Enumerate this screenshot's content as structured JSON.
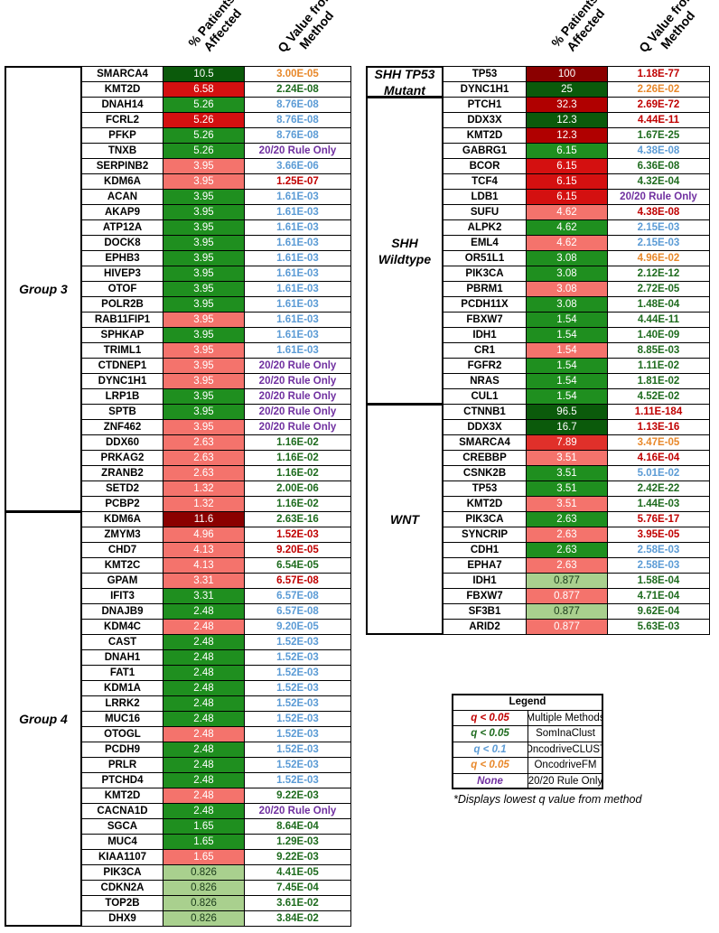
{
  "header": {
    "pct": "% Patients Affected",
    "q": "Q Value from Method"
  },
  "tables": [
    {
      "groups": [
        {
          "name": "Group 3",
          "rows": [
            [
              "SMARCA4",
              "10.5",
              "#0b5a0b",
              "3.00E-05",
              "#e8882a"
            ],
            [
              "KMT2D",
              "6.58",
              "#d41010",
              "2.24E-08",
              "#1e6b1e"
            ],
            [
              "DNAH14",
              "5.26",
              "#1f8f1f",
              "8.76E-08",
              "#5b9bd5"
            ],
            [
              "FCRL2",
              "5.26",
              "#d41010",
              "8.76E-08",
              "#5b9bd5"
            ],
            [
              "PFKP",
              "5.26",
              "#1f8f1f",
              "8.76E-08",
              "#5b9bd5"
            ],
            [
              "TNXB",
              "5.26",
              "#1f8f1f",
              "20/20 Rule Only",
              "#7030a0"
            ],
            [
              "SERPINB2",
              "3.95",
              "#f4736c",
              "3.66E-06",
              "#5b9bd5"
            ],
            [
              "KDM6A",
              "3.95",
              "#f4736c",
              "1.25E-07",
              "#c00000"
            ],
            [
              "ACAN",
              "3.95",
              "#1f8f1f",
              "1.61E-03",
              "#5b9bd5"
            ],
            [
              "AKAP9",
              "3.95",
              "#1f8f1f",
              "1.61E-03",
              "#5b9bd5"
            ],
            [
              "ATP12A",
              "3.95",
              "#1f8f1f",
              "1.61E-03",
              "#5b9bd5"
            ],
            [
              "DOCK8",
              "3.95",
              "#1f8f1f",
              "1.61E-03",
              "#5b9bd5"
            ],
            [
              "EPHB3",
              "3.95",
              "#1f8f1f",
              "1.61E-03",
              "#5b9bd5"
            ],
            [
              "HIVEP3",
              "3.95",
              "#1f8f1f",
              "1.61E-03",
              "#5b9bd5"
            ],
            [
              "OTOF",
              "3.95",
              "#1f8f1f",
              "1.61E-03",
              "#5b9bd5"
            ],
            [
              "POLR2B",
              "3.95",
              "#1f8f1f",
              "1.61E-03",
              "#5b9bd5"
            ],
            [
              "RAB11FIP1",
              "3.95",
              "#f4736c",
              "1.61E-03",
              "#5b9bd5"
            ],
            [
              "SPHKAP",
              "3.95",
              "#1f8f1f",
              "1.61E-03",
              "#5b9bd5"
            ],
            [
              "TRIML1",
              "3.95",
              "#f4736c",
              "1.61E-03",
              "#5b9bd5"
            ],
            [
              "CTDNEP1",
              "3.95",
              "#f4736c",
              "20/20 Rule Only",
              "#7030a0"
            ],
            [
              "DYNC1H1",
              "3.95",
              "#f4736c",
              "20/20 Rule Only",
              "#7030a0"
            ],
            [
              "LRP1B",
              "3.95",
              "#1f8f1f",
              "20/20 Rule Only",
              "#7030a0"
            ],
            [
              "SPTB",
              "3.95",
              "#1f8f1f",
              "20/20 Rule Only",
              "#7030a0"
            ],
            [
              "ZNF462",
              "3.95",
              "#f4736c",
              "20/20 Rule Only",
              "#7030a0"
            ],
            [
              "DDX60",
              "2.63",
              "#f4736c",
              "1.16E-02",
              "#1e6b1e"
            ],
            [
              "PRKAG2",
              "2.63",
              "#f4736c",
              "1.16E-02",
              "#1e6b1e"
            ],
            [
              "ZRANB2",
              "2.63",
              "#f4736c",
              "1.16E-02",
              "#1e6b1e"
            ],
            [
              "SETD2",
              "1.32",
              "#f4736c",
              "2.00E-06",
              "#1e6b1e"
            ],
            [
              "PCBP2",
              "1.32",
              "#f4736c",
              "1.16E-02",
              "#1e6b1e"
            ]
          ]
        },
        {
          "name": "Group 4",
          "rows": [
            [
              "KDM6A",
              "11.6",
              "#8b0000",
              "2.63E-16",
              "#1e6b1e"
            ],
            [
              "ZMYM3",
              "4.96",
              "#f4736c",
              "1.52E-03",
              "#c00000"
            ],
            [
              "CHD7",
              "4.13",
              "#f4736c",
              "9.20E-05",
              "#c00000"
            ],
            [
              "KMT2C",
              "4.13",
              "#f4736c",
              "6.54E-05",
              "#1e6b1e"
            ],
            [
              "GPAM",
              "3.31",
              "#f4736c",
              "6.57E-08",
              "#c00000"
            ],
            [
              "IFIT3",
              "3.31",
              "#1f8f1f",
              "6.57E-08",
              "#5b9bd5"
            ],
            [
              "DNAJB9",
              "2.48",
              "#1f8f1f",
              "6.57E-08",
              "#5b9bd5"
            ],
            [
              "KDM4C",
              "2.48",
              "#f4736c",
              "9.20E-05",
              "#5b9bd5"
            ],
            [
              "CAST",
              "2.48",
              "#1f8f1f",
              "1.52E-03",
              "#5b9bd5"
            ],
            [
              "DNAH1",
              "2.48",
              "#1f8f1f",
              "1.52E-03",
              "#5b9bd5"
            ],
            [
              "FAT1",
              "2.48",
              "#1f8f1f",
              "1.52E-03",
              "#5b9bd5"
            ],
            [
              "KDM1A",
              "2.48",
              "#1f8f1f",
              "1.52E-03",
              "#5b9bd5"
            ],
            [
              "LRRK2",
              "2.48",
              "#1f8f1f",
              "1.52E-03",
              "#5b9bd5"
            ],
            [
              "MUC16",
              "2.48",
              "#1f8f1f",
              "1.52E-03",
              "#5b9bd5"
            ],
            [
              "OTOGL",
              "2.48",
              "#f4736c",
              "1.52E-03",
              "#5b9bd5"
            ],
            [
              "PCDH9",
              "2.48",
              "#1f8f1f",
              "1.52E-03",
              "#5b9bd5"
            ],
            [
              "PRLR",
              "2.48",
              "#1f8f1f",
              "1.52E-03",
              "#5b9bd5"
            ],
            [
              "PTCHD4",
              "2.48",
              "#1f8f1f",
              "1.52E-03",
              "#5b9bd5"
            ],
            [
              "KMT2D",
              "2.48",
              "#f4736c",
              "9.22E-03",
              "#1e6b1e"
            ],
            [
              "CACNA1D",
              "2.48",
              "#1f8f1f",
              "20/20 Rule Only",
              "#7030a0"
            ],
            [
              "SGCA",
              "1.65",
              "#1f8f1f",
              "8.64E-04",
              "#1e6b1e"
            ],
            [
              "MUC4",
              "1.65",
              "#1f8f1f",
              "1.29E-03",
              "#1e6b1e"
            ],
            [
              "KIAA1107",
              "1.65",
              "#f4736c",
              "9.22E-03",
              "#1e6b1e"
            ],
            [
              "PIK3CA",
              "0.826",
              "#a9d08e",
              "4.41E-05",
              "#1e6b1e"
            ],
            [
              "CDKN2A",
              "0.826",
              "#a9d08e",
              "7.45E-04",
              "#1e6b1e"
            ],
            [
              "TOP2B",
              "0.826",
              "#a9d08e",
              "3.61E-02",
              "#1e6b1e"
            ],
            [
              "DHX9",
              "0.826",
              "#a9d08e",
              "3.84E-02",
              "#1e6b1e"
            ]
          ]
        }
      ]
    },
    {
      "groups": [
        {
          "name": "SHH TP53 Mutant",
          "rows": [
            [
              "TP53",
              "100",
              "#8b0000",
              "1.18E-77",
              "#c00000"
            ],
            [
              "DYNC1H1",
              "25",
              "#0b5a0b",
              "2.26E-02",
              "#e8882a"
            ]
          ]
        },
        {
          "name": "SHH Wildtype",
          "rows": [
            [
              "PTCH1",
              "32.3",
              "#b00000",
              "2.69E-72",
              "#c00000"
            ],
            [
              "DDX3X",
              "12.3",
              "#0b5a0b",
              "4.44E-11",
              "#c00000"
            ],
            [
              "KMT2D",
              "12.3",
              "#b00000",
              "1.67E-25",
              "#1e6b1e"
            ],
            [
              "GABRG1",
              "6.15",
              "#1f8f1f",
              "4.38E-08",
              "#5b9bd5"
            ],
            [
              "BCOR",
              "6.15",
              "#d41010",
              "6.36E-08",
              "#1e6b1e"
            ],
            [
              "TCF4",
              "6.15",
              "#d41010",
              "4.32E-04",
              "#1e6b1e"
            ],
            [
              "LDB1",
              "6.15",
              "#d41010",
              "20/20 Rule Only",
              "#7030a0"
            ],
            [
              "SUFU",
              "4.62",
              "#f4736c",
              "4.38E-08",
              "#c00000"
            ],
            [
              "ALPK2",
              "4.62",
              "#1f8f1f",
              "2.15E-03",
              "#5b9bd5"
            ],
            [
              "EML4",
              "4.62",
              "#f4736c",
              "2.15E-03",
              "#5b9bd5"
            ],
            [
              "OR51L1",
              "3.08",
              "#1f8f1f",
              "4.96E-02",
              "#e8882a"
            ],
            [
              "PIK3CA",
              "3.08",
              "#1f8f1f",
              "2.12E-12",
              "#1e6b1e"
            ],
            [
              "PBRM1",
              "3.08",
              "#f4736c",
              "2.72E-05",
              "#1e6b1e"
            ],
            [
              "PCDH11X",
              "3.08",
              "#1f8f1f",
              "1.48E-04",
              "#1e6b1e"
            ],
            [
              "FBXW7",
              "1.54",
              "#1f8f1f",
              "4.44E-11",
              "#1e6b1e"
            ],
            [
              "IDH1",
              "1.54",
              "#1f8f1f",
              "1.40E-09",
              "#1e6b1e"
            ],
            [
              "CR1",
              "1.54",
              "#f4736c",
              "8.85E-03",
              "#1e6b1e"
            ],
            [
              "FGFR2",
              "1.54",
              "#1f8f1f",
              "1.11E-02",
              "#1e6b1e"
            ],
            [
              "NRAS",
              "1.54",
              "#1f8f1f",
              "1.81E-02",
              "#1e6b1e"
            ],
            [
              "CUL1",
              "1.54",
              "#1f8f1f",
              "4.52E-02",
              "#1e6b1e"
            ]
          ]
        },
        {
          "name": "WNT",
          "rows": [
            [
              "CTNNB1",
              "96.5",
              "#0b5a0b",
              "1.11E-184",
              "#c00000"
            ],
            [
              "DDX3X",
              "16.7",
              "#0b5a0b",
              "1.13E-16",
              "#c00000"
            ],
            [
              "SMARCA4",
              "7.89",
              "#e0302a",
              "3.47E-05",
              "#e8882a"
            ],
            [
              "CREBBP",
              "3.51",
              "#f4736c",
              "4.16E-04",
              "#c00000"
            ],
            [
              "CSNK2B",
              "3.51",
              "#1f8f1f",
              "5.01E-02",
              "#5b9bd5"
            ],
            [
              "TP53",
              "3.51",
              "#1f8f1f",
              "2.42E-22",
              "#1e6b1e"
            ],
            [
              "KMT2D",
              "3.51",
              "#f4736c",
              "1.44E-03",
              "#1e6b1e"
            ],
            [
              "PIK3CA",
              "2.63",
              "#1f8f1f",
              "5.76E-17",
              "#c00000"
            ],
            [
              "SYNCRIP",
              "2.63",
              "#f4736c",
              "3.95E-05",
              "#c00000"
            ],
            [
              "CDH1",
              "2.63",
              "#1f8f1f",
              "2.58E-03",
              "#5b9bd5"
            ],
            [
              "EPHA7",
              "2.63",
              "#f4736c",
              "2.58E-03",
              "#5b9bd5"
            ],
            [
              "IDH1",
              "0.877",
              "#a9d08e",
              "1.58E-04",
              "#1e6b1e"
            ],
            [
              "FBXW7",
              "0.877",
              "#f4736c",
              "4.71E-04",
              "#1e6b1e"
            ],
            [
              "SF3B1",
              "0.877",
              "#a9d08e",
              "9.62E-04",
              "#1e6b1e"
            ],
            [
              "ARID2",
              "0.877",
              "#f4736c",
              "5.63E-03",
              "#1e6b1e"
            ]
          ]
        }
      ]
    }
  ],
  "legend": {
    "title": "Legend",
    "entries": [
      {
        "q": "q < 0.05",
        "method": "Multiple Methods",
        "color": "#c00000"
      },
      {
        "q": "q < 0.05",
        "method": "SomInaClust",
        "color": "#1e6b1e"
      },
      {
        "q": "q < 0.1",
        "method": "OncodriveCLUST",
        "color": "#5b9bd5"
      },
      {
        "q": "q < 0.05",
        "method": "OncodriveFM",
        "color": "#e8882a"
      },
      {
        "q": "None",
        "method": "20/20 Rule Only",
        "color": "#7030a0"
      }
    ]
  },
  "footnote": "*Displays lowest q value from method"
}
